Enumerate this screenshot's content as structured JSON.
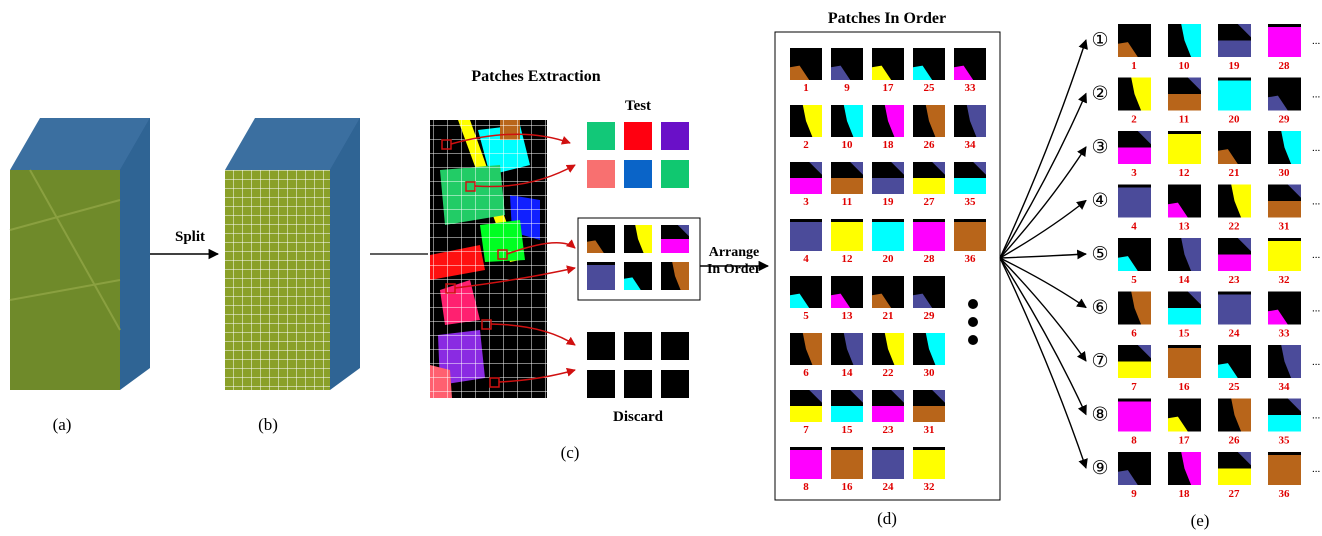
{
  "split": "Split",
  "extraction": {
    "title": "Patches Extraction",
    "test": "Test",
    "discard": "Discard",
    "arrange": [
      "Arrange",
      "In Order"
    ]
  },
  "order": {
    "title": "Patches In Order",
    "patches": [
      1,
      2,
      3,
      4,
      5,
      6,
      7,
      8,
      9,
      10,
      11,
      12,
      13,
      14,
      15,
      16,
      17,
      18,
      19,
      20,
      21,
      22,
      23,
      24,
      25,
      26,
      27,
      28,
      29,
      30,
      31,
      32,
      33,
      34,
      35,
      36
    ]
  },
  "groups": [
    {
      "marker": "①",
      "patches": [
        1,
        10,
        19,
        28
      ],
      "more": "..."
    },
    {
      "marker": "②",
      "patches": [
        2,
        11,
        20,
        29
      ],
      "more": "..."
    },
    {
      "marker": "③",
      "patches": [
        3,
        12,
        21,
        30
      ],
      "more": "..."
    },
    {
      "marker": "④",
      "patches": [
        4,
        13,
        22,
        31
      ],
      "more": "..."
    },
    {
      "marker": "⑤",
      "patches": [
        5,
        14,
        23,
        32
      ],
      "more": "..."
    },
    {
      "marker": "⑥",
      "patches": [
        6,
        15,
        24,
        33
      ],
      "more": "..."
    },
    {
      "marker": "⑦",
      "patches": [
        7,
        16,
        25,
        34
      ],
      "more": "..."
    },
    {
      "marker": "⑧",
      "patches": [
        8,
        17,
        26,
        35
      ],
      "more": "..."
    },
    {
      "marker": "⑨",
      "patches": [
        9,
        18,
        27,
        36
      ],
      "more": "..."
    }
  ],
  "captions": [
    "(a)",
    "(b)",
    "(c)",
    "(d)",
    "(e)"
  ]
}
